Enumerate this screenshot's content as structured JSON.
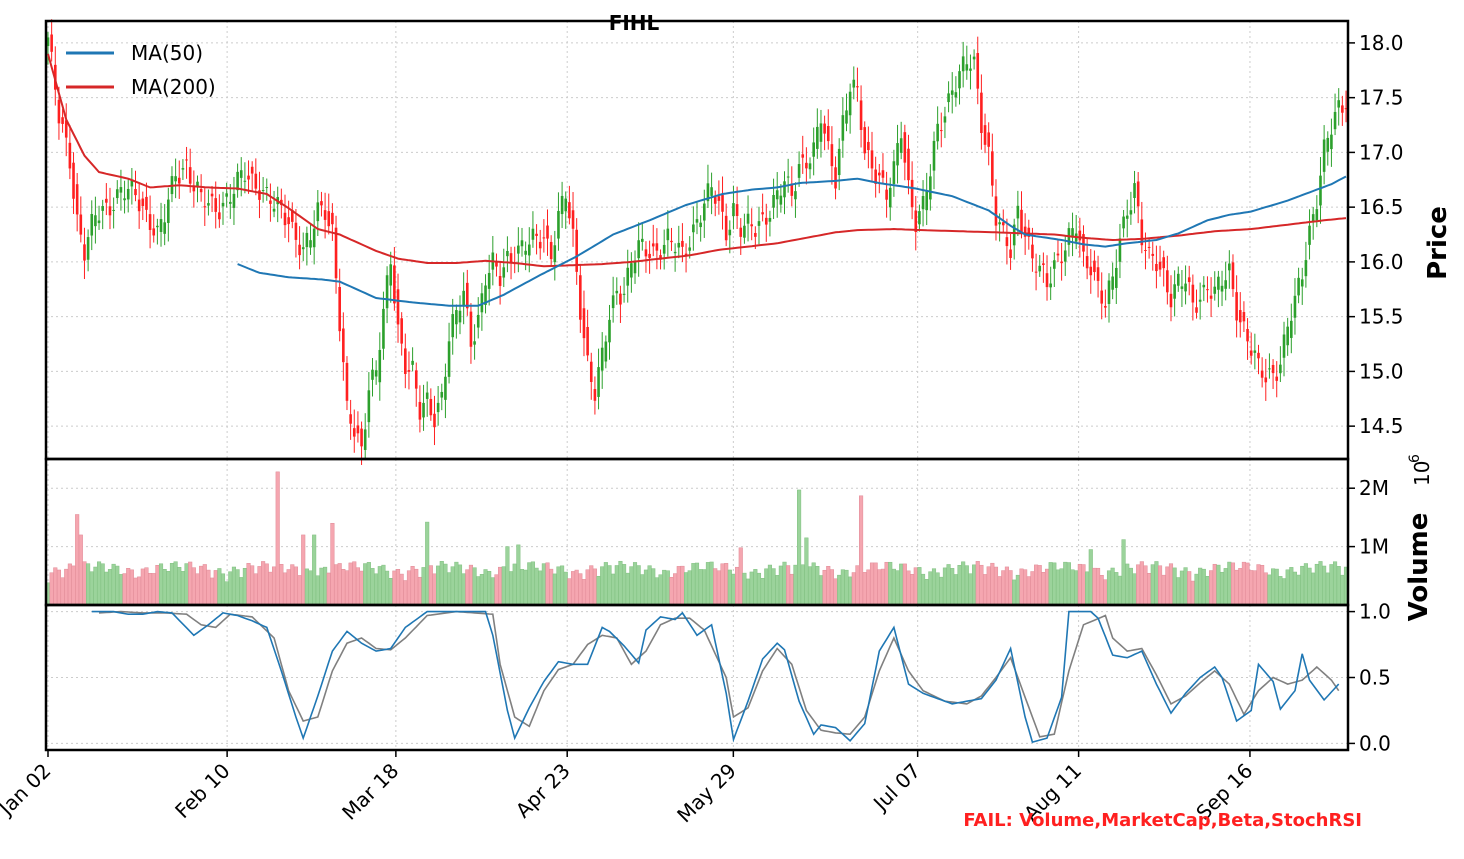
{
  "chart_data": {
    "type": "candlestick",
    "title": "FIHL",
    "footer_note": "FAIL: Volume,MarketCap,Beta,StochRSI",
    "colors": {
      "up": "#2ca02c",
      "down": "#ff2020",
      "ma50": "#1f77b4",
      "ma200": "#d62728",
      "vol_up": "#9bd39b",
      "vol_down": "#f5a6b0",
      "stoch_k": "#1f77b4",
      "stoch_d": "#808080",
      "fail_text": "#ff2020"
    },
    "x_tick_labels": [
      "Jan 02",
      "Feb 10",
      "Mar 18",
      "Apr 23",
      "May 29",
      "Jul 07",
      "Aug 11",
      "Sep 16"
    ],
    "grid": true,
    "price_panel": {
      "ylabel": "Price",
      "ylim": [
        14.2,
        18.2
      ],
      "yticks": [
        14.5,
        15.0,
        15.5,
        16.0,
        16.5,
        17.0,
        17.5,
        18.0
      ],
      "ytick_labels": [
        "14.5",
        "15.0",
        "15.5",
        "16.0",
        "16.5",
        "17.0",
        "17.5",
        "18.0"
      ],
      "legend": {
        "position": "top-left",
        "entries": [
          {
            "label": "MA(50)",
            "color": "#1f77b4"
          },
          {
            "label": "MA(200)",
            "color": "#d62728"
          }
        ]
      },
      "ma_anchors": {
        "ma50": [
          [
            52,
            15.98
          ],
          [
            58,
            15.9
          ],
          [
            66,
            15.86
          ],
          [
            75,
            15.84
          ],
          [
            80,
            15.82
          ],
          [
            90,
            15.67
          ],
          [
            100,
            15.63
          ],
          [
            110,
            15.6
          ],
          [
            118,
            15.6
          ],
          [
            125,
            15.7
          ],
          [
            135,
            15.88
          ],
          [
            145,
            16.05
          ],
          [
            155,
            16.25
          ],
          [
            165,
            16.38
          ],
          [
            175,
            16.52
          ],
          [
            185,
            16.62
          ],
          [
            193,
            16.66
          ],
          [
            200,
            16.68
          ],
          [
            206,
            16.72
          ],
          [
            216,
            16.74
          ],
          [
            222,
            16.76
          ],
          [
            228,
            16.72
          ],
          [
            238,
            16.67
          ],
          [
            248,
            16.6
          ],
          [
            258,
            16.47
          ],
          [
            264,
            16.33
          ],
          [
            268,
            16.25
          ],
          [
            278,
            16.2
          ],
          [
            284,
            16.16
          ],
          [
            290,
            16.14
          ],
          [
            296,
            16.17
          ],
          [
            304,
            16.2
          ],
          [
            310,
            16.26
          ],
          [
            318,
            16.38
          ],
          [
            324,
            16.43
          ],
          [
            330,
            16.46
          ],
          [
            340,
            16.56
          ],
          [
            352,
            16.71
          ],
          [
            356,
            16.78
          ]
        ],
        "ma200": [
          [
            0,
            17.9
          ],
          [
            5,
            17.3
          ],
          [
            10,
            16.97
          ],
          [
            14,
            16.82
          ],
          [
            22,
            16.76
          ],
          [
            28,
            16.68
          ],
          [
            36,
            16.7
          ],
          [
            44,
            16.68
          ],
          [
            52,
            16.67
          ],
          [
            60,
            16.62
          ],
          [
            66,
            16.49
          ],
          [
            74,
            16.3
          ],
          [
            80,
            16.25
          ],
          [
            90,
            16.1
          ],
          [
            96,
            16.03
          ],
          [
            104,
            15.99
          ],
          [
            112,
            15.99
          ],
          [
            120,
            16.01
          ],
          [
            128,
            15.99
          ],
          [
            136,
            15.96
          ],
          [
            144,
            15.97
          ],
          [
            152,
            15.98
          ],
          [
            160,
            16.0
          ],
          [
            168,
            16.03
          ],
          [
            176,
            16.06
          ],
          [
            184,
            16.11
          ],
          [
            192,
            16.14
          ],
          [
            200,
            16.17
          ],
          [
            208,
            16.22
          ],
          [
            216,
            16.27
          ],
          [
            222,
            16.29
          ],
          [
            232,
            16.3
          ],
          [
            240,
            16.29
          ],
          [
            250,
            16.28
          ],
          [
            260,
            16.27
          ],
          [
            268,
            16.26
          ],
          [
            276,
            16.25
          ],
          [
            284,
            16.22
          ],
          [
            292,
            16.2
          ],
          [
            300,
            16.21
          ],
          [
            310,
            16.24
          ],
          [
            320,
            16.28
          ],
          [
            330,
            16.3
          ],
          [
            340,
            16.34
          ],
          [
            350,
            16.38
          ],
          [
            356,
            16.4
          ]
        ]
      }
    },
    "volume_panel": {
      "ylabel": "Volume",
      "offset_label": "10^6",
      "offset_base": "10",
      "offset_exp": "6",
      "ylim": [
        0,
        2.5
      ],
      "yticks": [
        1,
        2
      ],
      "ytick_labels": [
        "1M",
        "2M"
      ]
    },
    "stoch_panel": {
      "ylim": [
        -0.05,
        1.05
      ],
      "yticks": [
        0.0,
        0.5,
        1.0
      ],
      "ytick_labels": [
        "0.0",
        "0.5",
        "1.0"
      ],
      "k_anchors": [
        [
          12,
          1.0
        ],
        [
          18,
          1.0
        ],
        [
          22,
          0.98
        ],
        [
          26,
          0.98
        ],
        [
          30,
          1.0
        ],
        [
          34,
          0.99
        ],
        [
          40,
          0.82
        ],
        [
          44,
          0.9
        ],
        [
          48,
          0.99
        ],
        [
          52,
          0.97
        ],
        [
          56,
          0.93
        ],
        [
          60,
          0.88
        ],
        [
          64,
          0.55
        ],
        [
          68,
          0.2
        ],
        [
          70,
          0.04
        ],
        [
          74,
          0.36
        ],
        [
          78,
          0.7
        ],
        [
          82,
          0.85
        ],
        [
          86,
          0.76
        ],
        [
          90,
          0.7
        ],
        [
          94,
          0.72
        ],
        [
          98,
          0.88
        ],
        [
          104,
          1.0
        ],
        [
          112,
          1.0
        ],
        [
          120,
          1.0
        ],
        [
          122,
          0.82
        ],
        [
          126,
          0.25
        ],
        [
          128,
          0.04
        ],
        [
          132,
          0.27
        ],
        [
          136,
          0.47
        ],
        [
          140,
          0.62
        ],
        [
          144,
          0.6
        ],
        [
          148,
          0.6
        ],
        [
          152,
          0.88
        ],
        [
          154,
          0.85
        ],
        [
          158,
          0.74
        ],
        [
          162,
          0.61
        ],
        [
          164,
          0.86
        ],
        [
          168,
          0.96
        ],
        [
          172,
          0.94
        ],
        [
          174,
          0.99
        ],
        [
          178,
          0.82
        ],
        [
          182,
          0.9
        ],
        [
          186,
          0.38
        ],
        [
          188,
          0.03
        ],
        [
          192,
          0.32
        ],
        [
          196,
          0.64
        ],
        [
          200,
          0.76
        ],
        [
          202,
          0.71
        ],
        [
          206,
          0.32
        ],
        [
          210,
          0.07
        ],
        [
          212,
          0.14
        ],
        [
          216,
          0.12
        ],
        [
          220,
          0.02
        ],
        [
          224,
          0.15
        ],
        [
          228,
          0.7
        ],
        [
          232,
          0.88
        ],
        [
          236,
          0.45
        ],
        [
          240,
          0.38
        ],
        [
          244,
          0.34
        ],
        [
          248,
          0.3
        ],
        [
          252,
          0.32
        ],
        [
          256,
          0.34
        ],
        [
          260,
          0.48
        ],
        [
          264,
          0.72
        ],
        [
          268,
          0.2
        ],
        [
          270,
          0.01
        ],
        [
          274,
          0.04
        ],
        [
          278,
          0.35
        ],
        [
          280,
          1.0
        ],
        [
          286,
          1.0
        ],
        [
          288,
          0.95
        ],
        [
          292,
          0.67
        ],
        [
          296,
          0.65
        ],
        [
          300,
          0.7
        ],
        [
          304,
          0.45
        ],
        [
          308,
          0.23
        ],
        [
          312,
          0.38
        ],
        [
          316,
          0.5
        ],
        [
          320,
          0.58
        ],
        [
          322,
          0.5
        ],
        [
          326,
          0.17
        ],
        [
          330,
          0.25
        ],
        [
          332,
          0.6
        ],
        [
          336,
          0.47
        ],
        [
          338,
          0.26
        ],
        [
          342,
          0.4
        ],
        [
          344,
          0.68
        ],
        [
          346,
          0.48
        ],
        [
          350,
          0.33
        ],
        [
          354,
          0.45
        ]
      ],
      "d_anchors": [
        [
          14,
          0.99
        ],
        [
          20,
          1.0
        ],
        [
          26,
          0.99
        ],
        [
          32,
          0.99
        ],
        [
          38,
          0.98
        ],
        [
          42,
          0.9
        ],
        [
          46,
          0.88
        ],
        [
          50,
          0.98
        ],
        [
          56,
          0.96
        ],
        [
          62,
          0.8
        ],
        [
          66,
          0.4
        ],
        [
          70,
          0.17
        ],
        [
          74,
          0.2
        ],
        [
          78,
          0.55
        ],
        [
          82,
          0.76
        ],
        [
          86,
          0.8
        ],
        [
          90,
          0.72
        ],
        [
          94,
          0.71
        ],
        [
          98,
          0.8
        ],
        [
          104,
          0.97
        ],
        [
          112,
          1.0
        ],
        [
          122,
          0.98
        ],
        [
          124,
          0.6
        ],
        [
          128,
          0.2
        ],
        [
          132,
          0.13
        ],
        [
          136,
          0.4
        ],
        [
          140,
          0.56
        ],
        [
          144,
          0.6
        ],
        [
          148,
          0.75
        ],
        [
          152,
          0.82
        ],
        [
          156,
          0.8
        ],
        [
          160,
          0.6
        ],
        [
          164,
          0.7
        ],
        [
          168,
          0.9
        ],
        [
          172,
          0.95
        ],
        [
          176,
          0.95
        ],
        [
          180,
          0.86
        ],
        [
          186,
          0.5
        ],
        [
          188,
          0.2
        ],
        [
          192,
          0.27
        ],
        [
          196,
          0.55
        ],
        [
          200,
          0.72
        ],
        [
          204,
          0.6
        ],
        [
          208,
          0.25
        ],
        [
          212,
          0.1
        ],
        [
          216,
          0.08
        ],
        [
          220,
          0.07
        ],
        [
          224,
          0.2
        ],
        [
          228,
          0.55
        ],
        [
          232,
          0.8
        ],
        [
          236,
          0.55
        ],
        [
          240,
          0.4
        ],
        [
          246,
          0.32
        ],
        [
          252,
          0.3
        ],
        [
          256,
          0.36
        ],
        [
          260,
          0.5
        ],
        [
          264,
          0.65
        ],
        [
          268,
          0.35
        ],
        [
          272,
          0.05
        ],
        [
          276,
          0.07
        ],
        [
          280,
          0.55
        ],
        [
          284,
          0.9
        ],
        [
          290,
          0.97
        ],
        [
          292,
          0.8
        ],
        [
          296,
          0.7
        ],
        [
          300,
          0.72
        ],
        [
          304,
          0.52
        ],
        [
          308,
          0.3
        ],
        [
          312,
          0.36
        ],
        [
          316,
          0.46
        ],
        [
          320,
          0.55
        ],
        [
          324,
          0.45
        ],
        [
          328,
          0.22
        ],
        [
          332,
          0.4
        ],
        [
          336,
          0.5
        ],
        [
          340,
          0.45
        ],
        [
          344,
          0.48
        ],
        [
          348,
          0.58
        ],
        [
          352,
          0.48
        ],
        [
          354,
          0.4
        ]
      ]
    }
  }
}
